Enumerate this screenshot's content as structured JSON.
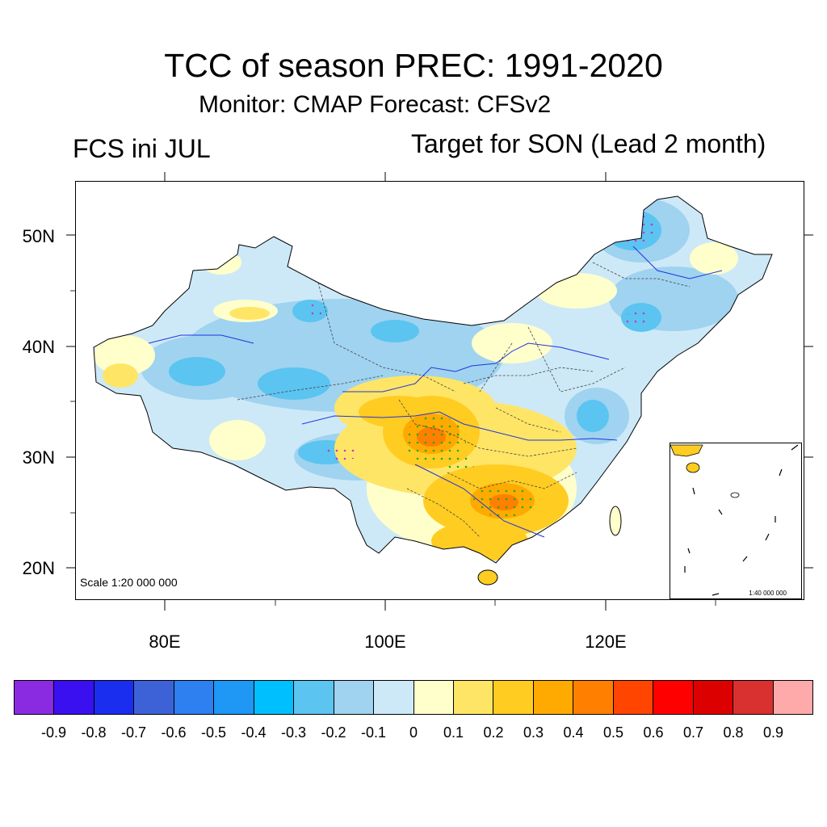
{
  "header": {
    "title": "TCC of season PREC: 1991-2020",
    "subtitle": "Monitor: CMAP   Forecast: CFSv2",
    "left_label": "FCS ini JUL",
    "right_label": "Target for SON (Lead 2 month)"
  },
  "map": {
    "scale_label": "Scale 1:20 000 000",
    "inset_scale_label": "1:40 000 000",
    "lat_labels": [
      "50N",
      "40N",
      "30N",
      "20N"
    ],
    "lon_labels": [
      "80E",
      "100E",
      "120E"
    ],
    "significance_dot_color": "#22aa22",
    "significance_dot_color_negative": "#cc33cc"
  },
  "colorbar": {
    "colors": [
      "#8a2be2",
      "#3a10f0",
      "#1a2ef0",
      "#3d62d8",
      "#2e7ff0",
      "#1e97f5",
      "#00bfff",
      "#5bc4f0",
      "#9fd3f0",
      "#cde9f7",
      "#ffffcc",
      "#ffe566",
      "#ffcc22",
      "#ffaa00",
      "#ff7f00",
      "#ff4500",
      "#ff0000",
      "#dd0000",
      "#d93030",
      "#ffaaaa"
    ],
    "labels": [
      "-0.9",
      "-0.8",
      "-0.7",
      "-0.6",
      "-0.5",
      "-0.4",
      "-0.3",
      "-0.2",
      "-0.1",
      "0",
      "0.1",
      "0.2",
      "0.3",
      "0.4",
      "0.5",
      "0.6",
      "0.7",
      "0.8",
      "0.9"
    ]
  }
}
